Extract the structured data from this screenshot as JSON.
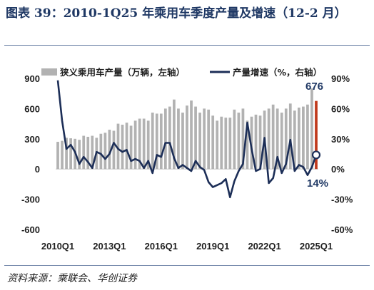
{
  "title": "图表 39：2010-1Q25 年乘用车季度产量及增速（12-2 月）",
  "source": "资料来源：乘联会、华创证券",
  "colors": {
    "bar": "#b2b2b2",
    "bar_latest": "#c0391c",
    "line": "#1c2e57",
    "text": "#1f3864"
  },
  "chart_data": {
    "type": "bar+line",
    "x": [
      "2010Q1",
      "2010Q2",
      "2010Q3",
      "2010Q4",
      "2011Q1",
      "2011Q2",
      "2011Q3",
      "2011Q4",
      "2012Q1",
      "2012Q2",
      "2012Q3",
      "2012Q4",
      "2013Q1",
      "2013Q2",
      "2013Q3",
      "2013Q4",
      "2014Q1",
      "2014Q2",
      "2014Q3",
      "2014Q4",
      "2015Q1",
      "2015Q2",
      "2015Q3",
      "2015Q4",
      "2016Q1",
      "2016Q2",
      "2016Q3",
      "2016Q4",
      "2017Q1",
      "2017Q2",
      "2017Q3",
      "2017Q4",
      "2018Q1",
      "2018Q2",
      "2018Q3",
      "2018Q4",
      "2019Q1",
      "2019Q2",
      "2019Q3",
      "2019Q4",
      "2020Q1",
      "2020Q2",
      "2020Q3",
      "2020Q4",
      "2021Q1",
      "2021Q2",
      "2021Q3",
      "2021Q4",
      "2022Q1",
      "2022Q2",
      "2022Q3",
      "2022Q4",
      "2023Q1",
      "2023Q2",
      "2023Q3",
      "2023Q4",
      "2024Q1",
      "2024Q2",
      "2024Q3",
      "2024Q4",
      "2025Q1"
    ],
    "xtick_labels": [
      "2010Q1",
      "2013Q1",
      "2016Q1",
      "2019Q1",
      "2022Q1",
      "2025Q1"
    ],
    "series": [
      {
        "name": "狭义乘用车产量（万辆，左轴）",
        "type": "bar",
        "axis": "left",
        "values": [
          270,
          280,
          310,
          305,
          300,
          290,
          330,
          320,
          330,
          310,
          350,
          360,
          390,
          380,
          450,
          440,
          460,
          430,
          480,
          500,
          500,
          480,
          560,
          550,
          550,
          600,
          620,
          690,
          600,
          560,
          630,
          680,
          620,
          560,
          600,
          590,
          530,
          480,
          520,
          510,
          510,
          590,
          560,
          600,
          480,
          520,
          540,
          530,
          580,
          600,
          640,
          600,
          560,
          600,
          650,
          580,
          610,
          620,
          640,
          800,
          676
        ]
      },
      {
        "name": "产量增速（%，右轴）",
        "type": "line",
        "axis": "right",
        "values": [
          88,
          48,
          20,
          24,
          17,
          5,
          12,
          7,
          1,
          17,
          15,
          10,
          15,
          26,
          20,
          17,
          19,
          8,
          10,
          8,
          1,
          8,
          -4,
          14,
          12,
          26,
          26,
          11,
          1,
          4,
          1,
          -2,
          8,
          2,
          -1,
          -13,
          -18,
          -16,
          -14,
          -10,
          -28,
          -12,
          -2,
          5,
          46,
          20,
          -2,
          0,
          31,
          -14,
          -9,
          12,
          -4,
          5,
          29,
          -2,
          4,
          2,
          -6,
          2,
          14
        ]
      }
    ],
    "ylim_left": [
      -600,
      900
    ],
    "yticks_left": [
      "900",
      "600",
      "300",
      "0",
      "-300",
      "-600"
    ],
    "ylim_right": [
      -60,
      90
    ],
    "yticks_right": [
      "90%",
      "60%",
      "30%",
      "0%",
      "-30%",
      "-60%"
    ],
    "annotations": {
      "last_bar": "676",
      "last_growth": "14%"
    },
    "legend_position": "top"
  }
}
